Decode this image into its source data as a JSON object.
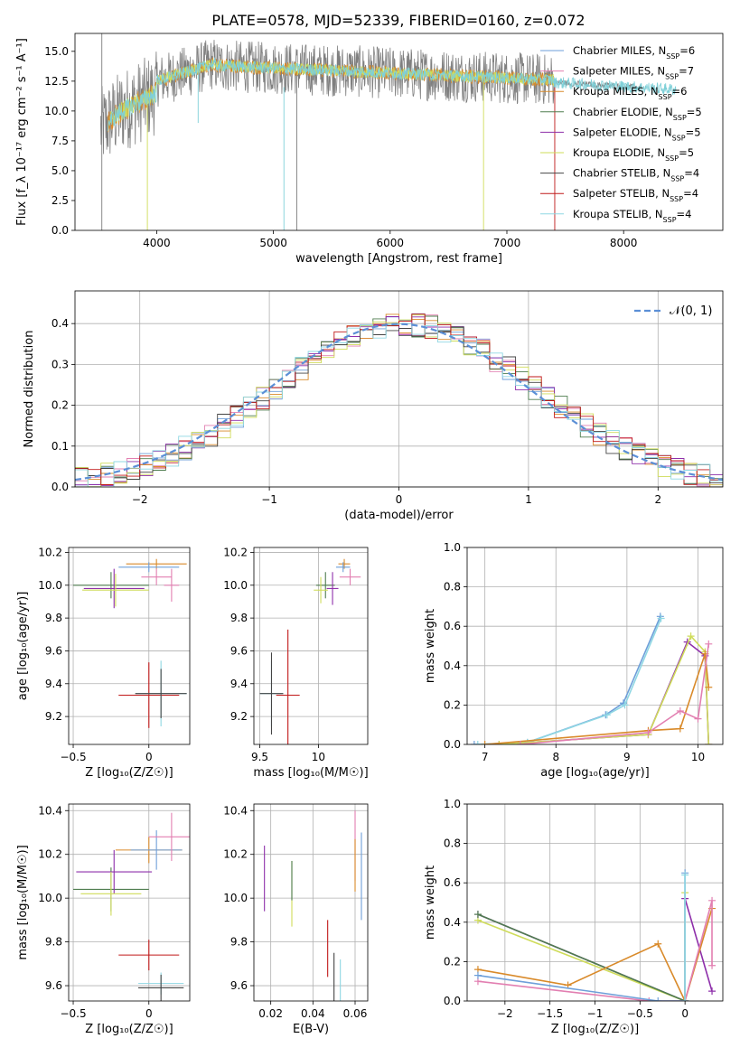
{
  "figure_title": "PLATE=0578, MJD=52339, FIBERID=0160, z=0.072",
  "legend_spectrum": [
    {
      "pre": "Chabrier MILES, N",
      "sub": "SSP",
      "post": "=6",
      "color": "#6e9fd9"
    },
    {
      "pre": "Salpeter MILES, N",
      "sub": "SSP",
      "post": "=7",
      "color": "#e27fb1"
    },
    {
      "pre": "Kroupa MILES, N",
      "sub": "SSP",
      "post": "=6",
      "color": "#d98a2a"
    },
    {
      "pre": "Chabrier ELODIE, N",
      "sub": "SSP",
      "post": "=5",
      "color": "#4f7d4f"
    },
    {
      "pre": "Salpeter ELODIE, N",
      "sub": "SSP",
      "post": "=5",
      "color": "#8e2faa"
    },
    {
      "pre": "Kroupa ELODIE, N",
      "sub": "SSP",
      "post": "=5",
      "color": "#cfdc5a"
    },
    {
      "pre": "Chabrier STELIB, N",
      "sub": "SSP",
      "post": "=4",
      "color": "#444444"
    },
    {
      "pre": "Salpeter STELIB, N",
      "sub": "SSP",
      "post": "=4",
      "color": "#c01818"
    },
    {
      "pre": "Kroupa STELIB, N",
      "sub": "SSP",
      "post": "=4",
      "color": "#8fd7e3"
    }
  ],
  "legend_hist": "𝒩(0, 1)",
  "colors": {
    "data": "#7f7f7f",
    "model": "#7fd0d8",
    "model2": "#ff7f0e",
    "gauss": "#5b8fd6"
  },
  "chart_data": [
    {
      "id": "spectrum",
      "type": "line",
      "xlabel": "wavelength [Angstrom, rest frame]",
      "ylabel": "Flux [f_λ 10⁻¹⁷ erg cm⁻² s⁻¹ A⁻¹]",
      "xlim": [
        3300,
        8850
      ],
      "ylim": [
        0,
        16.5
      ],
      "xticks": [
        4000,
        5000,
        6000,
        7000,
        8000
      ],
      "yticks": [
        0.0,
        2.5,
        5.0,
        7.5,
        10.0,
        12.5,
        15.0
      ],
      "grid": false,
      "legend": "right"
    },
    {
      "id": "residual_hist",
      "type": "bar",
      "xlabel": "(data-model)/error",
      "ylabel": "Normed distribution",
      "xlim": [
        -2.5,
        2.5
      ],
      "ylim": [
        0,
        0.48
      ],
      "xticks": [
        -2,
        -1,
        0,
        1,
        2
      ],
      "yticks": [
        0.0,
        0.1,
        0.2,
        0.3,
        0.4
      ],
      "grid": true,
      "legend": "top-right"
    },
    {
      "id": "age_vs_Z",
      "type": "scatter",
      "xlabel": "Z [log₁₀(Z/Z☉)]",
      "ylabel": "age  [log₁₀(age/yr)]",
      "xlim": [
        -0.53,
        0.27
      ],
      "ylim": [
        9.03,
        10.23
      ],
      "xticks": [
        -0.5,
        0.0
      ],
      "yticks": [
        9.2,
        9.4,
        9.6,
        9.8,
        10.0,
        10.2
      ],
      "grid": true,
      "points": [
        {
          "x": 0.05,
          "y": 10.13,
          "xerr": 0.2,
          "yerr": 0.03,
          "color": "#d98a2a"
        },
        {
          "x": 0.0,
          "y": 10.11,
          "xerr": 0.2,
          "yerr": 0.03,
          "color": "#6e9fd9"
        },
        {
          "x": 0.05,
          "y": 10.05,
          "xerr": 0.1,
          "yerr": 0.05,
          "color": "#e27fb1"
        },
        {
          "x": 0.15,
          "y": 10.0,
          "xerr": 0.05,
          "yerr": 0.1,
          "color": "#e27fb1"
        },
        {
          "x": -0.25,
          "y": 10.0,
          "xerr": 0.25,
          "yerr": 0.08,
          "color": "#4f7d4f"
        },
        {
          "x": -0.23,
          "y": 9.98,
          "xerr": 0.2,
          "yerr": 0.12,
          "color": "#8e2faa"
        },
        {
          "x": -0.22,
          "y": 9.97,
          "xerr": 0.22,
          "yerr": 0.1,
          "color": "#cfdc5a"
        },
        {
          "x": 0.0,
          "y": 9.33,
          "xerr": 0.2,
          "yerr": 0.2,
          "color": "#c01818"
        },
        {
          "x": 0.08,
          "y": 9.34,
          "xerr": 0.17,
          "yerr": 0.2,
          "color": "#8fd7e3"
        },
        {
          "x": 0.08,
          "y": 9.34,
          "xerr": 0.17,
          "yerr": 0.15,
          "color": "#444444"
        }
      ]
    },
    {
      "id": "age_vs_mass",
      "type": "scatter",
      "xlabel": "mass [log₁₀(M/M☉)]",
      "ylabel": "",
      "xlim": [
        9.45,
        10.42
      ],
      "ylim": [
        9.03,
        10.23
      ],
      "xticks": [
        9.5,
        10.0
      ],
      "yticks": [
        9.2,
        9.4,
        9.6,
        9.8,
        10.0,
        10.2
      ],
      "grid": true,
      "points": [
        {
          "x": 10.22,
          "y": 10.13,
          "xerr": 0.05,
          "yerr": 0.03,
          "color": "#d98a2a"
        },
        {
          "x": 10.21,
          "y": 10.11,
          "xerr": 0.06,
          "yerr": 0.03,
          "color": "#6e9fd9"
        },
        {
          "x": 10.27,
          "y": 10.05,
          "xerr": 0.09,
          "yerr": 0.05,
          "color": "#e27fb1"
        },
        {
          "x": 10.06,
          "y": 10.0,
          "xerr": 0.08,
          "yerr": 0.08,
          "color": "#4f7d4f"
        },
        {
          "x": 10.12,
          "y": 9.98,
          "xerr": 0.05,
          "yerr": 0.1,
          "color": "#8e2faa"
        },
        {
          "x": 10.02,
          "y": 9.97,
          "xerr": 0.06,
          "yerr": 0.08,
          "color": "#cfdc5a"
        },
        {
          "x": 9.74,
          "y": 9.33,
          "xerr": 0.1,
          "yerr": 0.4,
          "color": "#c01818"
        },
        {
          "x": 9.6,
          "y": 9.34,
          "xerr": 0.1,
          "yerr": 0.2,
          "color": "#8fd7e3"
        },
        {
          "x": 9.6,
          "y": 9.34,
          "xerr": 0.1,
          "yerr": 0.25,
          "color": "#444444"
        }
      ]
    },
    {
      "id": "massweight_vs_age",
      "type": "line",
      "xlabel": "age  [log₁₀(age/yr)]",
      "ylabel": "mass weight",
      "xlim": [
        6.75,
        10.35
      ],
      "ylim": [
        0,
        1.0
      ],
      "xticks": [
        7,
        8,
        9,
        10
      ],
      "yticks": [
        0.0,
        0.2,
        0.4,
        0.6,
        0.8,
        1.0
      ],
      "grid": true,
      "series": [
        {
          "color": "#6e9fd9",
          "x": [
            6.85,
            7.6,
            8.7,
            8.95,
            9.47
          ],
          "y": [
            0.0,
            0.01,
            0.15,
            0.21,
            0.65
          ]
        },
        {
          "color": "#8fd7e3",
          "x": [
            6.9,
            7.6,
            8.72,
            8.97,
            9.48
          ],
          "y": [
            0.0,
            0.01,
            0.15,
            0.2,
            0.64
          ]
        },
        {
          "color": "#8e2faa",
          "x": [
            7.2,
            9.3,
            9.85,
            10.1,
            10.15
          ],
          "y": [
            0.0,
            0.05,
            0.52,
            0.45,
            0.0
          ]
        },
        {
          "color": "#cfdc5a",
          "x": [
            7.2,
            9.3,
            9.9,
            10.1,
            10.15
          ],
          "y": [
            0.0,
            0.05,
            0.55,
            0.47,
            0.0
          ]
        },
        {
          "color": "#d98a2a",
          "x": [
            7.0,
            9.3,
            9.75,
            10.1,
            10.15
          ],
          "y": [
            0.0,
            0.07,
            0.08,
            0.46,
            0.29
          ]
        },
        {
          "color": "#e27fb1",
          "x": [
            7.5,
            9.3,
            9.75,
            10.0,
            10.15
          ],
          "y": [
            0.0,
            0.06,
            0.17,
            0.13,
            0.51
          ]
        }
      ]
    },
    {
      "id": "mass_vs_Z",
      "type": "scatter",
      "xlabel": "Z [log₁₀(Z/Z☉)]",
      "ylabel": "mass [log₁₀(M/M☉)]",
      "xlim": [
        -0.53,
        0.27
      ],
      "ylim": [
        9.53,
        10.43
      ],
      "xticks": [
        -0.5,
        0.0
      ],
      "yticks": [
        9.6,
        9.8,
        10.0,
        10.2,
        10.4
      ],
      "grid": true,
      "points": [
        {
          "x": 0.0,
          "y": 10.22,
          "xerr": 0.22,
          "yerr": 0.06,
          "color": "#d98a2a"
        },
        {
          "x": 0.05,
          "y": 10.22,
          "xerr": 0.17,
          "yerr": 0.09,
          "color": "#6e9fd9"
        },
        {
          "x": 0.15,
          "y": 10.28,
          "xerr": 0.15,
          "yerr": 0.11,
          "color": "#e27fb1"
        },
        {
          "x": -0.25,
          "y": 10.04,
          "xerr": 0.25,
          "yerr": 0.1,
          "color": "#4f7d4f"
        },
        {
          "x": -0.23,
          "y": 10.12,
          "xerr": 0.25,
          "yerr": 0.1,
          "color": "#8e2faa"
        },
        {
          "x": -0.25,
          "y": 10.02,
          "xerr": 0.2,
          "yerr": 0.1,
          "color": "#cfdc5a"
        },
        {
          "x": 0.0,
          "y": 9.74,
          "xerr": 0.2,
          "yerr": 0.07,
          "color": "#c01818"
        },
        {
          "x": 0.08,
          "y": 9.61,
          "xerr": 0.15,
          "yerr": 0.05,
          "color": "#8fd7e3"
        },
        {
          "x": 0.08,
          "y": 9.59,
          "xerr": 0.15,
          "yerr": 0.06,
          "color": "#444444"
        }
      ]
    },
    {
      "id": "mass_vs_ebv",
      "type": "scatter",
      "xlabel": "E(B-V)",
      "ylabel": "",
      "xlim": [
        0.012,
        0.066
      ],
      "ylim": [
        9.53,
        10.43
      ],
      "xticks": [
        0.02,
        0.04,
        0.06
      ],
      "yticks": [
        9.6,
        9.8,
        10.0,
        10.2,
        10.4
      ],
      "grid": true,
      "points": [
        {
          "x": 0.017,
          "y": 10.09,
          "xerr": 0.0,
          "yerr": 0.15,
          "color": "#8e2faa"
        },
        {
          "x": 0.03,
          "y": 10.02,
          "xerr": 0.0,
          "yerr": 0.15,
          "color": "#cfdc5a"
        },
        {
          "x": 0.03,
          "y": 10.08,
          "xerr": 0.0,
          "yerr": 0.09,
          "color": "#4f7d4f"
        },
        {
          "x": 0.047,
          "y": 9.77,
          "xerr": 0.0,
          "yerr": 0.13,
          "color": "#c01818"
        },
        {
          "x": 0.05,
          "y": 9.62,
          "xerr": 0.0,
          "yerr": 0.13,
          "color": "#444444"
        },
        {
          "x": 0.053,
          "y": 9.62,
          "xerr": 0.0,
          "yerr": 0.1,
          "color": "#8fd7e3"
        },
        {
          "x": 0.06,
          "y": 10.24,
          "xerr": 0.0,
          "yerr": 0.16,
          "color": "#e27fb1"
        },
        {
          "x": 0.06,
          "y": 10.15,
          "xerr": 0.0,
          "yerr": 0.12,
          "color": "#d98a2a"
        },
        {
          "x": 0.063,
          "y": 10.1,
          "xerr": 0.0,
          "yerr": 0.2,
          "color": "#6e9fd9"
        }
      ]
    },
    {
      "id": "massweight_vs_Z",
      "type": "line",
      "xlabel": "Z [log₁₀(Z/Z☉)]",
      "ylabel": "mass weight",
      "xlim": [
        -2.42,
        0.42
      ],
      "ylim": [
        0,
        1.0
      ],
      "xticks": [
        -2.0,
        -1.5,
        -1.0,
        -0.5,
        0.0
      ],
      "yticks": [
        0.0,
        0.2,
        0.4,
        0.6,
        0.8,
        1.0
      ],
      "grid": true,
      "series": [
        {
          "color": "#8e2faa",
          "x": [
            -2.3,
            0.0,
            0.0,
            0.3
          ],
          "y": [
            0.44,
            0.0,
            0.52,
            0.05
          ]
        },
        {
          "color": "#cfdc5a",
          "x": [
            -2.3,
            0.0,
            0.0
          ],
          "y": [
            0.41,
            0.0,
            0.55
          ]
        },
        {
          "color": "#4f7d4f",
          "x": [
            -2.3,
            0.0
          ],
          "y": [
            0.44,
            0.0
          ]
        },
        {
          "color": "#d98a2a",
          "x": [
            -2.3,
            -1.3,
            -0.3,
            0.0,
            0.3
          ],
          "y": [
            0.16,
            0.08,
            0.29,
            0.0,
            0.47
          ]
        },
        {
          "color": "#e27fb1",
          "x": [
            -2.3,
            -0.4,
            0.0,
            0.3,
            0.3
          ],
          "y": [
            0.1,
            0.0,
            0.0,
            0.51,
            0.18
          ]
        },
        {
          "color": "#6e9fd9",
          "x": [
            -2.3,
            -0.3,
            0.0,
            0.0
          ],
          "y": [
            0.13,
            0.0,
            0.0,
            0.65
          ]
        },
        {
          "color": "#8fd7e3",
          "x": [
            0.0,
            0.0
          ],
          "y": [
            0.0,
            0.64
          ]
        }
      ]
    }
  ]
}
